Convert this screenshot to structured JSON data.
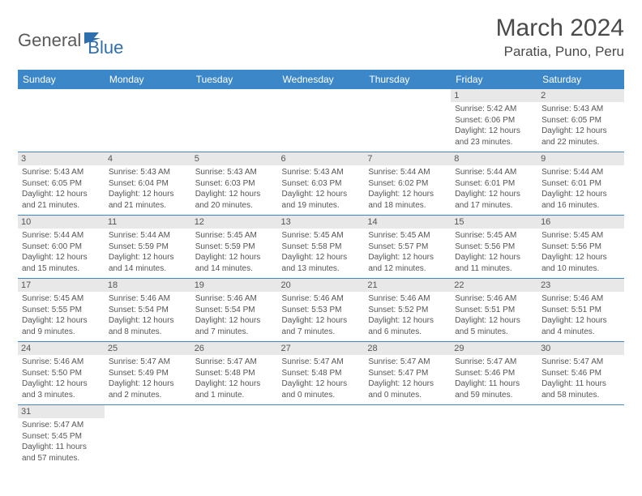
{
  "brand": {
    "part1": "General",
    "part2": "Blue"
  },
  "title": "March 2024",
  "location": "Paratia, Puno, Peru",
  "colors": {
    "header_bg": "#3b87c8",
    "header_text": "#ffffff",
    "daynum_bg": "#e8e8e8",
    "cell_border": "#3b87c8",
    "body_text": "#555555",
    "logo_gray": "#5a5a5a",
    "logo_blue": "#2f6fab"
  },
  "typography": {
    "title_fontsize": 30,
    "location_fontsize": 17,
    "weekday_fontsize": 12,
    "daynum_fontsize": 11,
    "cell_fontsize": 10
  },
  "weekdays": [
    "Sunday",
    "Monday",
    "Tuesday",
    "Wednesday",
    "Thursday",
    "Friday",
    "Saturday"
  ],
  "weeks": [
    [
      null,
      null,
      null,
      null,
      null,
      {
        "d": "1",
        "sr": "Sunrise: 5:42 AM",
        "ss": "Sunset: 6:06 PM",
        "dl1": "Daylight: 12 hours",
        "dl2": "and 23 minutes."
      },
      {
        "d": "2",
        "sr": "Sunrise: 5:43 AM",
        "ss": "Sunset: 6:05 PM",
        "dl1": "Daylight: 12 hours",
        "dl2": "and 22 minutes."
      }
    ],
    [
      {
        "d": "3",
        "sr": "Sunrise: 5:43 AM",
        "ss": "Sunset: 6:05 PM",
        "dl1": "Daylight: 12 hours",
        "dl2": "and 21 minutes."
      },
      {
        "d": "4",
        "sr": "Sunrise: 5:43 AM",
        "ss": "Sunset: 6:04 PM",
        "dl1": "Daylight: 12 hours",
        "dl2": "and 21 minutes."
      },
      {
        "d": "5",
        "sr": "Sunrise: 5:43 AM",
        "ss": "Sunset: 6:03 PM",
        "dl1": "Daylight: 12 hours",
        "dl2": "and 20 minutes."
      },
      {
        "d": "6",
        "sr": "Sunrise: 5:43 AM",
        "ss": "Sunset: 6:03 PM",
        "dl1": "Daylight: 12 hours",
        "dl2": "and 19 minutes."
      },
      {
        "d": "7",
        "sr": "Sunrise: 5:44 AM",
        "ss": "Sunset: 6:02 PM",
        "dl1": "Daylight: 12 hours",
        "dl2": "and 18 minutes."
      },
      {
        "d": "8",
        "sr": "Sunrise: 5:44 AM",
        "ss": "Sunset: 6:01 PM",
        "dl1": "Daylight: 12 hours",
        "dl2": "and 17 minutes."
      },
      {
        "d": "9",
        "sr": "Sunrise: 5:44 AM",
        "ss": "Sunset: 6:01 PM",
        "dl1": "Daylight: 12 hours",
        "dl2": "and 16 minutes."
      }
    ],
    [
      {
        "d": "10",
        "sr": "Sunrise: 5:44 AM",
        "ss": "Sunset: 6:00 PM",
        "dl1": "Daylight: 12 hours",
        "dl2": "and 15 minutes."
      },
      {
        "d": "11",
        "sr": "Sunrise: 5:44 AM",
        "ss": "Sunset: 5:59 PM",
        "dl1": "Daylight: 12 hours",
        "dl2": "and 14 minutes."
      },
      {
        "d": "12",
        "sr": "Sunrise: 5:45 AM",
        "ss": "Sunset: 5:59 PM",
        "dl1": "Daylight: 12 hours",
        "dl2": "and 14 minutes."
      },
      {
        "d": "13",
        "sr": "Sunrise: 5:45 AM",
        "ss": "Sunset: 5:58 PM",
        "dl1": "Daylight: 12 hours",
        "dl2": "and 13 minutes."
      },
      {
        "d": "14",
        "sr": "Sunrise: 5:45 AM",
        "ss": "Sunset: 5:57 PM",
        "dl1": "Daylight: 12 hours",
        "dl2": "and 12 minutes."
      },
      {
        "d": "15",
        "sr": "Sunrise: 5:45 AM",
        "ss": "Sunset: 5:56 PM",
        "dl1": "Daylight: 12 hours",
        "dl2": "and 11 minutes."
      },
      {
        "d": "16",
        "sr": "Sunrise: 5:45 AM",
        "ss": "Sunset: 5:56 PM",
        "dl1": "Daylight: 12 hours",
        "dl2": "and 10 minutes."
      }
    ],
    [
      {
        "d": "17",
        "sr": "Sunrise: 5:45 AM",
        "ss": "Sunset: 5:55 PM",
        "dl1": "Daylight: 12 hours",
        "dl2": "and 9 minutes."
      },
      {
        "d": "18",
        "sr": "Sunrise: 5:46 AM",
        "ss": "Sunset: 5:54 PM",
        "dl1": "Daylight: 12 hours",
        "dl2": "and 8 minutes."
      },
      {
        "d": "19",
        "sr": "Sunrise: 5:46 AM",
        "ss": "Sunset: 5:54 PM",
        "dl1": "Daylight: 12 hours",
        "dl2": "and 7 minutes."
      },
      {
        "d": "20",
        "sr": "Sunrise: 5:46 AM",
        "ss": "Sunset: 5:53 PM",
        "dl1": "Daylight: 12 hours",
        "dl2": "and 7 minutes."
      },
      {
        "d": "21",
        "sr": "Sunrise: 5:46 AM",
        "ss": "Sunset: 5:52 PM",
        "dl1": "Daylight: 12 hours",
        "dl2": "and 6 minutes."
      },
      {
        "d": "22",
        "sr": "Sunrise: 5:46 AM",
        "ss": "Sunset: 5:51 PM",
        "dl1": "Daylight: 12 hours",
        "dl2": "and 5 minutes."
      },
      {
        "d": "23",
        "sr": "Sunrise: 5:46 AM",
        "ss": "Sunset: 5:51 PM",
        "dl1": "Daylight: 12 hours",
        "dl2": "and 4 minutes."
      }
    ],
    [
      {
        "d": "24",
        "sr": "Sunrise: 5:46 AM",
        "ss": "Sunset: 5:50 PM",
        "dl1": "Daylight: 12 hours",
        "dl2": "and 3 minutes."
      },
      {
        "d": "25",
        "sr": "Sunrise: 5:47 AM",
        "ss": "Sunset: 5:49 PM",
        "dl1": "Daylight: 12 hours",
        "dl2": "and 2 minutes."
      },
      {
        "d": "26",
        "sr": "Sunrise: 5:47 AM",
        "ss": "Sunset: 5:48 PM",
        "dl1": "Daylight: 12 hours",
        "dl2": "and 1 minute."
      },
      {
        "d": "27",
        "sr": "Sunrise: 5:47 AM",
        "ss": "Sunset: 5:48 PM",
        "dl1": "Daylight: 12 hours",
        "dl2": "and 0 minutes."
      },
      {
        "d": "28",
        "sr": "Sunrise: 5:47 AM",
        "ss": "Sunset: 5:47 PM",
        "dl1": "Daylight: 12 hours",
        "dl2": "and 0 minutes."
      },
      {
        "d": "29",
        "sr": "Sunrise: 5:47 AM",
        "ss": "Sunset: 5:46 PM",
        "dl1": "Daylight: 11 hours",
        "dl2": "and 59 minutes."
      },
      {
        "d": "30",
        "sr": "Sunrise: 5:47 AM",
        "ss": "Sunset: 5:46 PM",
        "dl1": "Daylight: 11 hours",
        "dl2": "and 58 minutes."
      }
    ],
    [
      {
        "d": "31",
        "sr": "Sunrise: 5:47 AM",
        "ss": "Sunset: 5:45 PM",
        "dl1": "Daylight: 11 hours",
        "dl2": "and 57 minutes."
      },
      null,
      null,
      null,
      null,
      null,
      null
    ]
  ]
}
